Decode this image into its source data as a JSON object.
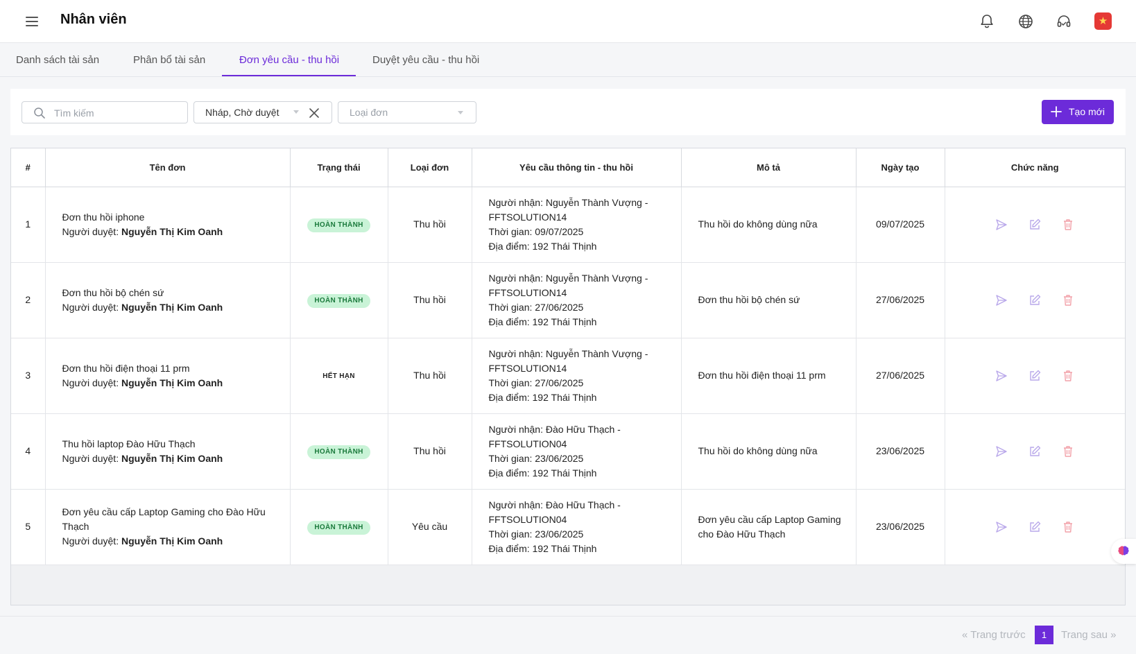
{
  "header": {
    "title": "Nhân viên",
    "icons": [
      "menu-icon",
      "bell-icon",
      "globe-icon",
      "headset-icon",
      "vietnam-flag-icon"
    ]
  },
  "tabs": [
    {
      "label": "Danh sách tài sản"
    },
    {
      "label": "Phân bổ tài sản"
    },
    {
      "label": "Đơn yêu cầu - thu hồi"
    },
    {
      "label": "Duyệt yêu cầu - thu hồi"
    }
  ],
  "active_tab": "Đơn yêu cầu - thu hồi",
  "filters": {
    "search_placeholder": "Tìm kiếm",
    "status_value": "Nháp, Chờ duyệt",
    "type_placeholder": "Loại đơn",
    "create_label": "Tạo mới"
  },
  "colors": {
    "accent": "#6c2bd9",
    "done_badge_bg": "#c9f3d7",
    "done_badge_text": "#1b7a3c"
  },
  "table": {
    "columns": [
      "#",
      "Tên đơn",
      "Trạng thái",
      "Loại đơn",
      "Yêu cầu thông tin - thu hồi",
      "Mô tả",
      "Ngày tạo",
      "Chức năng"
    ],
    "approver_label": "Người duyệt:",
    "rows": [
      {
        "no": "1",
        "name": "Đơn thu hồi iphone",
        "approver": "Nguyễn Thị Kim Oanh",
        "status": "HOÀN THÀNH",
        "status_kind": "done",
        "type": "Thu hồi",
        "info": [
          "Người nhận: Nguyễn Thành Vượng -",
          "FFTSOLUTION14",
          "Thời gian: 09/07/2025",
          "Địa điểm: 192 Thái Thịnh"
        ],
        "desc": "Thu hồi do không dùng nữa",
        "date": "09/07/2025"
      },
      {
        "no": "2",
        "name": "Đơn thu hồi bộ chén sứ",
        "approver": "Nguyễn Thị Kim Oanh",
        "status": "HOÀN THÀNH",
        "status_kind": "done",
        "type": "Thu hồi",
        "info": [
          "Người nhận: Nguyễn Thành Vượng -",
          "FFTSOLUTION14",
          "Thời gian: 27/06/2025",
          "Địa điểm: 192 Thái Thịnh"
        ],
        "desc": "Đơn thu hồi bộ chén sứ",
        "date": "27/06/2025"
      },
      {
        "no": "3",
        "name": "Đơn thu hồi điện thoại 11 prm",
        "approver": "Nguyễn Thị Kim Oanh",
        "status": "HẾT HẠN",
        "status_kind": "expired",
        "type": "Thu hồi",
        "info": [
          "Người nhận: Nguyễn Thành Vượng -",
          "FFTSOLUTION14",
          "Thời gian: 27/06/2025",
          "Địa điểm: 192 Thái Thịnh"
        ],
        "desc": "Đơn thu hồi điện thoại 11 prm",
        "date": "27/06/2025"
      },
      {
        "no": "4",
        "name": "Thu hồi laptop Đào Hữu Thạch",
        "approver": "Nguyễn Thị Kim Oanh",
        "status": "HOÀN THÀNH",
        "status_kind": "done",
        "type": "Thu hồi",
        "info": [
          "Người nhận: Đào Hữu Thạch -",
          "FFTSOLUTION04",
          "Thời gian: 23/06/2025",
          "Địa điểm: 192 Thái Thịnh"
        ],
        "desc": "Thu hồi do không dùng nữa",
        "date": "23/06/2025"
      },
      {
        "no": "5",
        "name": "Đơn yêu cầu cấp Laptop Gaming cho Đào Hữu Thạch",
        "approver": "Nguyễn Thị Kim Oanh",
        "status": "HOÀN THÀNH",
        "status_kind": "done",
        "type": "Yêu cầu",
        "info": [
          "Người nhận: Đào Hữu Thạch -",
          "FFTSOLUTION04",
          "Thời gian: 23/06/2025",
          "Địa điểm: 192 Thái Thịnh"
        ],
        "desc": "Đơn yêu cầu cấp Laptop Gaming cho Đào Hữu Thạch",
        "date": "23/06/2025"
      }
    ]
  },
  "pagination": {
    "prev": "« Trang trước",
    "page": "1",
    "next": "Trang sau »"
  }
}
